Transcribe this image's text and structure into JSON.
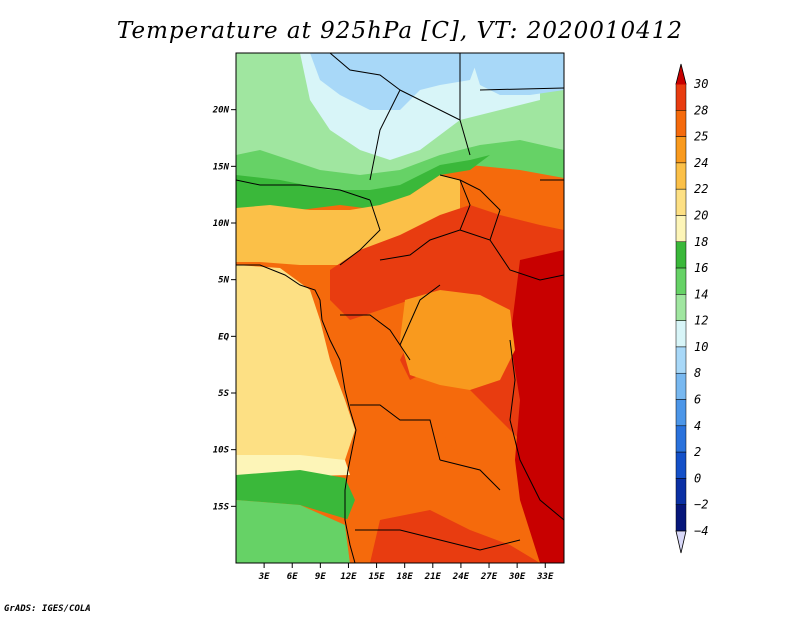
{
  "title": "Temperature at 925hPa [C], VT: 2020010412",
  "credit": "GrADS: IGES/COLA",
  "map": {
    "lon_range": [
      0,
      35
    ],
    "lat_range": [
      -20,
      25
    ],
    "lat_ticks": [
      {
        "value": 20,
        "label": "20N"
      },
      {
        "value": 15,
        "label": "15N"
      },
      {
        "value": 10,
        "label": "10N"
      },
      {
        "value": 5,
        "label": "5N"
      },
      {
        "value": 0,
        "label": "EQ"
      },
      {
        "value": -5,
        "label": "5S"
      },
      {
        "value": -10,
        "label": "10S"
      },
      {
        "value": -15,
        "label": "15S"
      }
    ],
    "lon_ticks": [
      {
        "value": 3,
        "label": "3E"
      },
      {
        "value": 6,
        "label": "6E"
      },
      {
        "value": 9,
        "label": "9E"
      },
      {
        "value": 12,
        "label": "12E"
      },
      {
        "value": 15,
        "label": "15E"
      },
      {
        "value": 18,
        "label": "18E"
      },
      {
        "value": 21,
        "label": "21E"
      },
      {
        "value": 24,
        "label": "24E"
      },
      {
        "value": 27,
        "label": "27E"
      },
      {
        "value": 30,
        "label": "30E"
      },
      {
        "value": 33,
        "label": "33E"
      }
    ]
  },
  "colorbar": {
    "levels": [
      {
        "label": "30",
        "color": "#c80000"
      },
      {
        "label": "28",
        "color": "#e83c10"
      },
      {
        "label": "25",
        "color": "#f56a0c"
      },
      {
        "label": "24",
        "color": "#f99a1e"
      },
      {
        "label": "22",
        "color": "#fbc048"
      },
      {
        "label": "20",
        "color": "#fde084"
      },
      {
        "label": "18",
        "color": "#fdf5b8"
      },
      {
        "label": "16",
        "color": "#3ab83a"
      },
      {
        "label": "14",
        "color": "#66d266"
      },
      {
        "label": "12",
        "color": "#a0e6a0"
      },
      {
        "label": "10",
        "color": "#d8f5f8"
      },
      {
        "label": "8",
        "color": "#a8d8f8"
      },
      {
        "label": "6",
        "color": "#78b8f0"
      },
      {
        "label": "4",
        "color": "#4c96e8"
      },
      {
        "label": "2",
        "color": "#2a72dc"
      },
      {
        "label": "0",
        "color": "#1450c8"
      },
      {
        "label": "−2",
        "color": "#0a30a4"
      },
      {
        "label": "−4",
        "color": "#06167a"
      }
    ],
    "bottom_triangle_color": "#d8d8f8",
    "top_triangle_color": "#c80000"
  }
}
